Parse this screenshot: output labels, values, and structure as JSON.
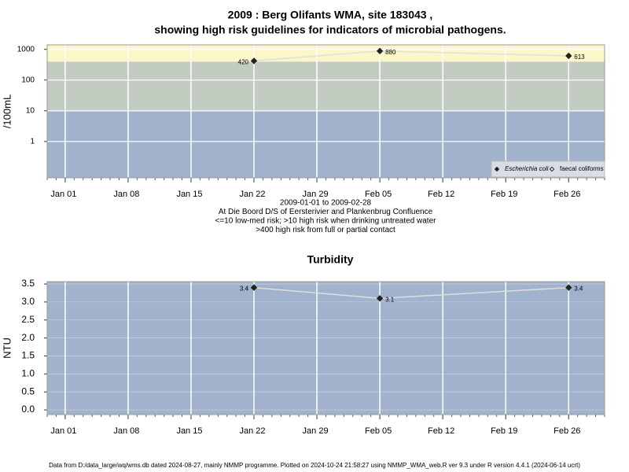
{
  "chart_data": [
    {
      "type": "line",
      "title": [
        "2009 : Berg Olifants WMA, site 183043 ,",
        "showing high risk guidelines for indicators of microbial pathogens."
      ],
      "subtitle": [
        "2009-01-01 to 2009-02-28",
        "At Die Boord D/S of Eersterivier and Plankenbrug Confluence",
        "<=10 low-med risk; >10 high risk when drinking untreated water",
        ">400 high risk from full or partial contact"
      ],
      "y_label": "/100mL",
      "log_scale": true,
      "thresholds": [
        10,
        400
      ],
      "band_colors": [
        "#a1b3cc",
        "#c3ccc1",
        "#fcf7c9"
      ],
      "x": [
        "2009-01-22",
        "2009-02-05",
        "2009-02-26"
      ],
      "series": [
        {
          "name": "Escherichia coli",
          "color": "#222222",
          "line_color": "#dedede",
          "values": [
            420,
            880,
            613
          ]
        },
        {
          "name": "faecal coliforms",
          "color": "#ffffff",
          "line_color": "#dedede",
          "values": [
            null,
            null,
            null
          ]
        }
      ],
      "xlim": [
        "2008-12-30",
        "2009-03-02"
      ],
      "xticks": [
        {
          "value": "2009-01-01",
          "label": "Jan 01"
        },
        {
          "value": "2009-01-08",
          "label": "Jan 08"
        },
        {
          "value": "2009-01-15",
          "label": "Jan 15"
        },
        {
          "value": "2009-01-22",
          "label": "Jan 22"
        },
        {
          "value": "2009-01-29",
          "label": "Jan 29"
        },
        {
          "value": "2009-02-05",
          "label": "Feb 05"
        },
        {
          "value": "2009-02-12",
          "label": "Feb 12"
        },
        {
          "value": "2009-02-19",
          "label": "Feb 19"
        },
        {
          "value": "2009-02-26",
          "label": "Feb 26"
        }
      ],
      "ylim": [
        0.066,
        1400
      ],
      "yticks": [
        1,
        10,
        100,
        1000
      ],
      "legend": "bottom-right"
    },
    {
      "type": "line",
      "title": [
        "Turbidity"
      ],
      "y_label": "NTU",
      "log_scale": false,
      "thresholds": [],
      "band_colors": [
        "#a1b3cc"
      ],
      "x": [
        "2009-01-22",
        "2009-02-05",
        "2009-02-26"
      ],
      "series": [
        {
          "name": "Turbidity",
          "color": "#222222",
          "line_color": "#dedede",
          "values": [
            3.4,
            3.1,
            3.4
          ]
        }
      ],
      "xlim": [
        "2008-12-30",
        "2009-03-02"
      ],
      "xticks": [
        {
          "value": "2009-01-01",
          "label": "Jan 01"
        },
        {
          "value": "2009-01-08",
          "label": "Jan 08"
        },
        {
          "value": "2009-01-15",
          "label": "Jan 15"
        },
        {
          "value": "2009-01-22",
          "label": "Jan 22"
        },
        {
          "value": "2009-01-29",
          "label": "Jan 29"
        },
        {
          "value": "2009-02-05",
          "label": "Feb 05"
        },
        {
          "value": "2009-02-12",
          "label": "Feb 12"
        },
        {
          "value": "2009-02-19",
          "label": "Feb 19"
        },
        {
          "value": "2009-02-26",
          "label": "Feb 26"
        }
      ],
      "ylim": [
        -0.13,
        3.566
      ],
      "yticks": [
        {
          "value": 0,
          "label": "0.0"
        },
        0.5,
        {
          "value": 1,
          "label": "1.0"
        },
        1.5,
        {
          "value": 2,
          "label": "2.0"
        },
        2.5,
        {
          "value": 3,
          "label": "3.0"
        },
        3.5
      ]
    }
  ],
  "footer": "Data from D:/data_large/wq/wms.db dated 2024-08-27, mainly NMMP programme. Plotted on 2024-10-24 21:58:27 using NMMP_WMA_web.R ver 9.3 under R version 4.4.1 (2024-06-14 ucrt)"
}
